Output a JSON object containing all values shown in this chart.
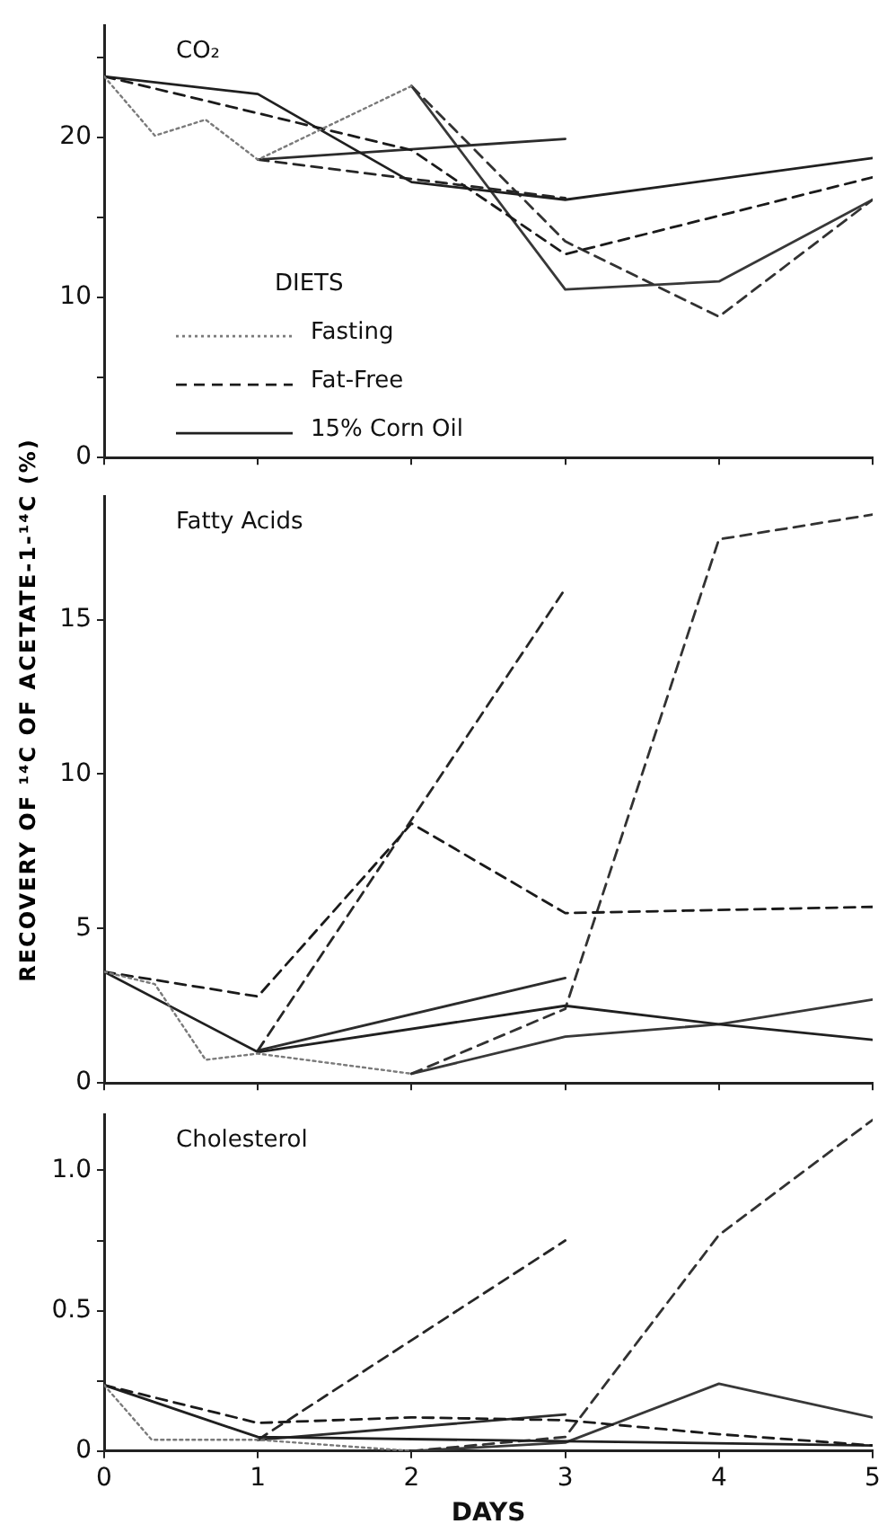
{
  "chart_data": [
    {
      "type": "line",
      "title": "CO₂",
      "legend_title": "DIETS",
      "legend": "bottom left",
      "marker": "none",
      "tick_labels": "y",
      "xlim": [
        0,
        5
      ],
      "xticks": [
        0,
        1,
        2,
        3,
        4,
        5
      ],
      "ylim": [
        0,
        27
      ],
      "yticks": [
        0,
        {
          "value": 5,
          "label": null
        },
        10,
        {
          "value": 15,
          "label": null
        },
        20,
        {
          "value": 25,
          "label": null
        }
      ],
      "series": [
        {
          "name": "Fasting",
          "color": "#7a7a7a",
          "line_style": "dotted",
          "x": [
            0,
            0.33,
            0.66,
            1,
            2
          ],
          "values": [
            23.8,
            20.1,
            21.1,
            18.6,
            23.2
          ]
        },
        {
          "name": "Fat-Free",
          "color": "#1a1a1a",
          "line_style": "dashed",
          "x": [
            0,
            2,
            3,
            5
          ],
          "values": [
            23.8,
            19.2,
            12.7,
            17.5
          ]
        },
        {
          "name": "15% Corn Oil",
          "color": "#202020",
          "line_style": "solid",
          "x": [
            0,
            1,
            2,
            3,
            5
          ],
          "values": [
            23.8,
            22.7,
            17.2,
            16.1,
            18.7
          ]
        },
        {
          "color": "#262626",
          "line_style": "dashed",
          "x": [
            1,
            3
          ],
          "values": [
            18.6,
            16.2
          ]
        },
        {
          "color": "#2c2c2c",
          "line_style": "solid",
          "x": [
            1,
            3
          ],
          "values": [
            18.6,
            19.9
          ]
        },
        {
          "color": "#323232",
          "line_style": "dashed",
          "x": [
            2,
            3,
            4,
            5
          ],
          "values": [
            23.2,
            13.5,
            8.8,
            16.1
          ]
        },
        {
          "color": "#383838",
          "line_style": "solid",
          "x": [
            2,
            3,
            4,
            5
          ],
          "values": [
            23.2,
            10.5,
            11.0,
            16.1
          ]
        }
      ]
    },
    {
      "type": "line",
      "title": "Fatty Acids",
      "ylabel": "RECOVERY OF ¹⁴C OF ACETATE-1-¹⁴C (%)",
      "marker": "none",
      "tick_labels": "y",
      "xlim": [
        0,
        5
      ],
      "xticks": [
        0,
        1,
        2,
        3,
        4,
        5
      ],
      "ylim": [
        0,
        19
      ],
      "yticks": [
        0,
        5,
        10,
        15
      ],
      "series": [
        {
          "color": "#7a7a7a",
          "line_style": "dotted",
          "x": [
            0,
            0.33,
            0.66,
            1,
            2
          ],
          "values": [
            3.6,
            3.2,
            0.75,
            0.95,
            0.3
          ]
        },
        {
          "color": "#1a1a1a",
          "line_style": "dashed",
          "x": [
            0,
            1,
            2,
            3,
            5
          ],
          "values": [
            3.6,
            2.8,
            8.4,
            5.5,
            5.7
          ]
        },
        {
          "color": "#202020",
          "line_style": "solid",
          "x": [
            0,
            1,
            3,
            4,
            5
          ],
          "values": [
            3.6,
            1.0,
            2.5,
            1.9,
            1.4
          ]
        },
        {
          "color": "#262626",
          "line_style": "dashed",
          "x": [
            1,
            3
          ],
          "values": [
            1.05,
            16.0
          ]
        },
        {
          "color": "#2c2c2c",
          "line_style": "solid",
          "x": [
            1,
            3
          ],
          "values": [
            1.05,
            3.4
          ]
        },
        {
          "color": "#323232",
          "line_style": "dashed",
          "x": [
            2,
            3,
            4,
            5
          ],
          "values": [
            0.3,
            2.4,
            17.6,
            18.4
          ]
        },
        {
          "color": "#383838",
          "line_style": "solid",
          "x": [
            2,
            3,
            4,
            5
          ],
          "values": [
            0.3,
            1.5,
            1.9,
            2.7
          ]
        }
      ]
    },
    {
      "type": "line",
      "title": "Cholesterol",
      "xlabel": "DAYS",
      "marker": "none",
      "xlim": [
        0,
        5
      ],
      "xticks": [
        0,
        1,
        2,
        3,
        4,
        5
      ],
      "ylim": [
        0,
        1.2
      ],
      "yticks": [
        0,
        {
          "value": 0.25,
          "label": null
        },
        0.5,
        {
          "value": 0.75,
          "label": null
        },
        {
          "value": 1,
          "label": "1.0"
        }
      ],
      "series": [
        {
          "color": "#7a7a7a",
          "line_style": "dotted",
          "x": [
            0,
            0.31,
            1,
            2
          ],
          "values": [
            0.235,
            0.04,
            0.04,
            0.0
          ]
        },
        {
          "color": "#1a1a1a",
          "line_style": "dashed",
          "x": [
            0,
            1,
            2,
            3,
            4,
            5
          ],
          "values": [
            0.235,
            0.1,
            0.12,
            0.11,
            0.06,
            0.02
          ]
        },
        {
          "color": "#202020",
          "line_style": "solid",
          "x": [
            0,
            1,
            3,
            5
          ],
          "values": [
            0.235,
            0.05,
            0.035,
            0.02
          ]
        },
        {
          "color": "#262626",
          "line_style": "dashed",
          "x": [
            1,
            3
          ],
          "values": [
            0.04,
            0.75
          ]
        },
        {
          "color": "#2c2c2c",
          "line_style": "solid",
          "x": [
            1,
            3
          ],
          "values": [
            0.04,
            0.13
          ]
        },
        {
          "color": "#323232",
          "line_style": "dashed",
          "x": [
            2,
            3,
            4,
            5
          ],
          "values": [
            0.0,
            0.05,
            0.77,
            1.18
          ]
        },
        {
          "color": "#383838",
          "line_style": "solid",
          "x": [
            2,
            3,
            4,
            5
          ],
          "values": [
            0.0,
            0.03,
            0.24,
            0.12
          ]
        }
      ]
    }
  ]
}
